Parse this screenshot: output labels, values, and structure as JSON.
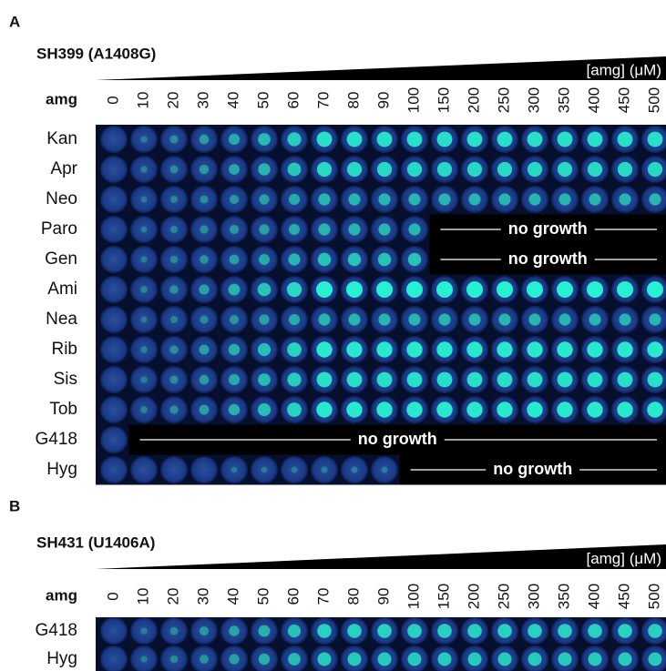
{
  "panels": [
    {
      "label": "A",
      "strain": "SH399 (A1408G)",
      "gradient_label": "[amg] (μM)",
      "header": "amg",
      "concentrations": [
        "0",
        "10",
        "20",
        "30",
        "40",
        "50",
        "60",
        "70",
        "80",
        "90",
        "100",
        "150",
        "200",
        "250",
        "300",
        "350",
        "400",
        "450",
        "500"
      ],
      "rows": [
        {
          "label": "Kan"
        },
        {
          "label": "Apr"
        },
        {
          "label": "Neo"
        },
        {
          "label": "Paro",
          "note": "no growth"
        },
        {
          "label": "Gen",
          "note": "no growth"
        },
        {
          "label": "Ami"
        },
        {
          "label": "Nea"
        },
        {
          "label": "Rib"
        },
        {
          "label": "Sis"
        },
        {
          "label": "Tob"
        },
        {
          "label": "G418",
          "note": "no growth"
        },
        {
          "label": "Hyg",
          "note": "no growth"
        }
      ]
    },
    {
      "label": "B",
      "strain": "SH431 (U1406A)",
      "gradient_label": "[amg] (μM)",
      "header": "amg",
      "concentrations": [
        "0",
        "10",
        "20",
        "30",
        "40",
        "50",
        "60",
        "70",
        "80",
        "90",
        "100",
        "150",
        "200",
        "250",
        "300",
        "350",
        "400",
        "450",
        "500"
      ],
      "rows": [
        {
          "label": "G418"
        },
        {
          "label": "Hyg"
        }
      ]
    }
  ]
}
